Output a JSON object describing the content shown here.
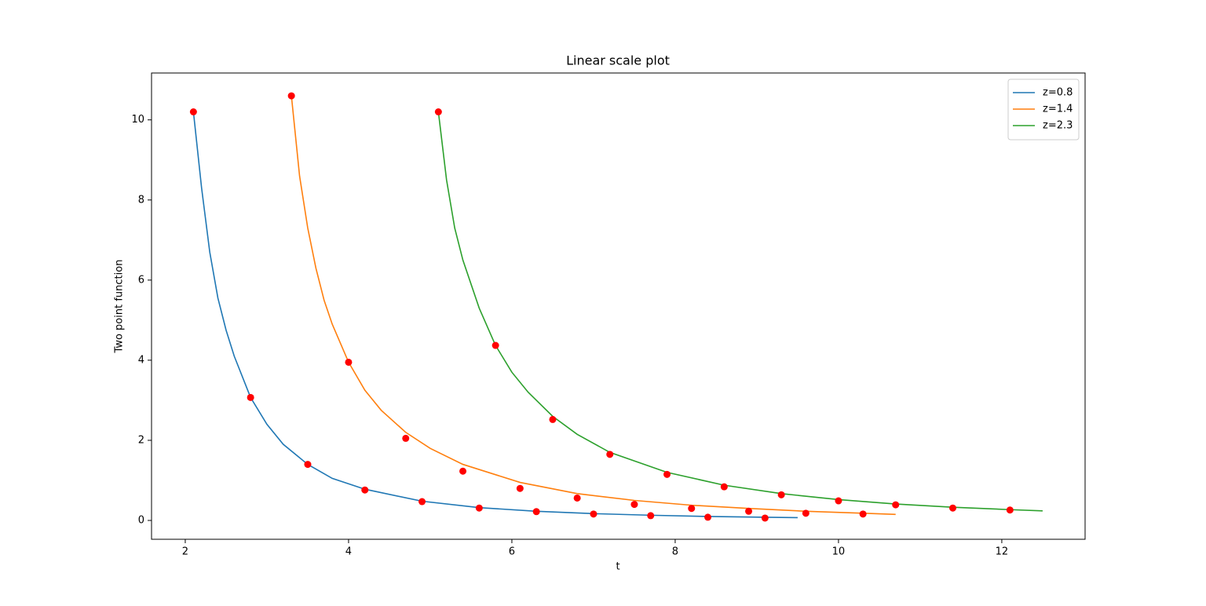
{
  "chart_data": {
    "type": "line",
    "title": "Linear scale plot",
    "x_label": "t",
    "y_label": "Two point function",
    "xlim": [
      1.587,
      13.02
    ],
    "ylim": [
      -0.47,
      11.17
    ],
    "xticks": [
      2,
      4,
      6,
      8,
      10,
      12
    ],
    "yticks": [
      0,
      2,
      4,
      6,
      8,
      10
    ],
    "grid": false,
    "legend": "upper right",
    "marker_color": "#ff0000",
    "series": [
      {
        "name": "z=0.8",
        "color": "#1f77b4",
        "x": [
          2.1,
          2.2,
          2.3,
          2.4,
          2.5,
          2.6,
          2.8,
          3.0,
          3.2,
          3.5,
          3.8,
          4.2,
          4.9,
          5.6,
          6.3,
          7.0,
          7.7,
          8.4,
          9.1,
          9.5
        ],
        "values": [
          10.2,
          8.3,
          6.7,
          5.55,
          4.75,
          4.1,
          3.07,
          2.4,
          1.9,
          1.4,
          1.05,
          0.78,
          0.48,
          0.32,
          0.23,
          0.17,
          0.13,
          0.1,
          0.08,
          0.07
        ],
        "points_x": [
          2.1,
          2.8,
          3.5,
          4.2,
          4.9,
          5.6,
          6.3,
          7.0,
          7.7,
          8.4,
          9.1
        ],
        "points_values": [
          10.2,
          3.07,
          1.4,
          0.76,
          0.47,
          0.31,
          0.22,
          0.16,
          0.12,
          0.08,
          0.06
        ]
      },
      {
        "name": "z=1.4",
        "color": "#ff7f0e",
        "x": [
          3.3,
          3.4,
          3.5,
          3.6,
          3.7,
          3.8,
          4.0,
          4.2,
          4.4,
          4.7,
          5.0,
          5.4,
          6.1,
          6.8,
          7.5,
          8.2,
          8.9,
          9.6,
          10.3,
          10.7
        ],
        "values": [
          10.6,
          8.6,
          7.3,
          6.3,
          5.5,
          4.9,
          3.95,
          3.25,
          2.75,
          2.2,
          1.8,
          1.4,
          0.95,
          0.67,
          0.5,
          0.38,
          0.3,
          0.23,
          0.18,
          0.15
        ],
        "points_x": [
          3.3,
          4.0,
          4.7,
          5.4,
          6.1,
          6.8,
          7.5,
          8.2,
          8.9,
          9.6,
          10.3
        ],
        "points_values": [
          10.6,
          3.95,
          2.05,
          1.23,
          0.8,
          0.56,
          0.4,
          0.3,
          0.23,
          0.18,
          0.16
        ]
      },
      {
        "name": "z=2.3",
        "color": "#2ca02c",
        "x": [
          5.1,
          5.2,
          5.3,
          5.4,
          5.5,
          5.6,
          5.8,
          6.0,
          6.2,
          6.5,
          6.8,
          7.2,
          7.9,
          8.6,
          9.3,
          10.0,
          10.7,
          11.4,
          12.1,
          12.5
        ],
        "values": [
          10.2,
          8.5,
          7.3,
          6.5,
          5.9,
          5.3,
          4.37,
          3.7,
          3.2,
          2.6,
          2.15,
          1.7,
          1.2,
          0.88,
          0.67,
          0.52,
          0.41,
          0.33,
          0.27,
          0.24
        ],
        "points_x": [
          5.1,
          5.8,
          6.5,
          7.2,
          7.9,
          8.6,
          9.3,
          10.0,
          10.7,
          11.4,
          12.1
        ],
        "points_values": [
          10.2,
          4.37,
          2.52,
          1.65,
          1.15,
          0.84,
          0.64,
          0.49,
          0.39,
          0.31,
          0.26
        ]
      }
    ]
  }
}
